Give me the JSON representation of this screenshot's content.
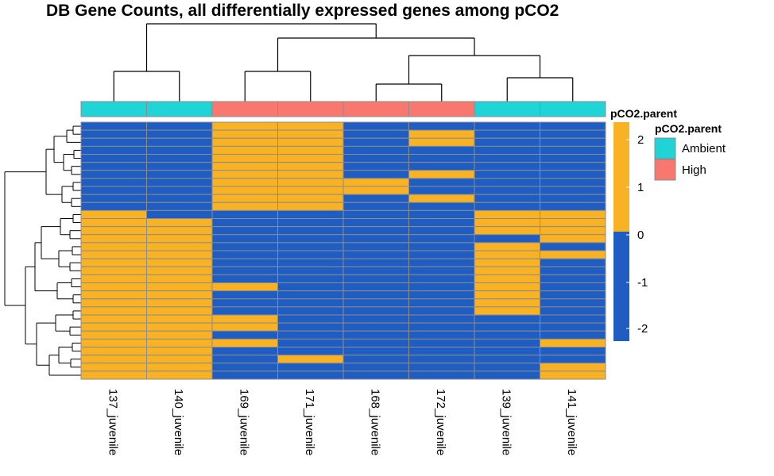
{
  "chart_data": {
    "type": "heatmap",
    "title": "DB Gene Counts, all differentially expressed genes among pCO2",
    "columns": [
      "137_juvenile",
      "140_juvenile",
      "169_juvenile",
      "171_juvenile",
      "168_juvenile",
      "172_juvenile",
      "139_juvenile",
      "141_juvenile"
    ],
    "column_annotation": {
      "name": "pCO2.parent",
      "values": [
        "Ambient",
        "Ambient",
        "High",
        "High",
        "High",
        "High",
        "Ambient",
        "Ambient"
      ]
    },
    "legend": {
      "title": "pCO2.parent",
      "items": [
        {
          "label": "Ambient",
          "color": "#1fd3d7"
        },
        {
          "label": "High",
          "color": "#f8786f"
        }
      ]
    },
    "color_scale": {
      "ticks": [
        "2",
        "1",
        "0",
        "-1",
        "-2"
      ],
      "high_color": "#f9b224",
      "low_color": "#1f5dc3"
    },
    "matrix": [
      [
        0,
        0,
        1,
        1,
        0,
        0,
        0,
        0
      ],
      [
        0,
        0,
        1,
        1,
        0,
        1,
        0,
        0
      ],
      [
        0,
        0,
        1,
        1,
        0,
        1,
        0,
        0
      ],
      [
        0,
        0,
        1,
        1,
        0,
        0,
        0,
        0
      ],
      [
        0,
        0,
        1,
        1,
        0,
        0,
        0,
        0
      ],
      [
        0,
        0,
        1,
        1,
        0,
        0,
        0,
        0
      ],
      [
        0,
        0,
        1,
        1,
        0,
        1,
        0,
        0
      ],
      [
        0,
        0,
        1,
        1,
        1,
        0,
        0,
        0
      ],
      [
        0,
        0,
        1,
        1,
        1,
        0,
        0,
        0
      ],
      [
        0,
        0,
        1,
        1,
        0,
        1,
        0,
        0
      ],
      [
        0,
        0,
        1,
        1,
        0,
        0,
        0,
        0
      ],
      [
        1,
        0,
        0,
        0,
        0,
        0,
        1,
        1
      ],
      [
        1,
        1,
        0,
        0,
        0,
        0,
        1,
        1
      ],
      [
        1,
        1,
        0,
        0,
        0,
        0,
        1,
        1
      ],
      [
        1,
        1,
        0,
        0,
        0,
        0,
        0,
        1
      ],
      [
        1,
        1,
        0,
        0,
        0,
        0,
        1,
        0
      ],
      [
        1,
        1,
        0,
        0,
        0,
        0,
        1,
        1
      ],
      [
        1,
        1,
        0,
        0,
        0,
        0,
        1,
        0
      ],
      [
        1,
        1,
        0,
        0,
        0,
        0,
        1,
        0
      ],
      [
        1,
        1,
        0,
        0,
        0,
        0,
        1,
        0
      ],
      [
        1,
        1,
        1,
        0,
        0,
        0,
        1,
        0
      ],
      [
        1,
        1,
        0,
        0,
        0,
        0,
        1,
        0
      ],
      [
        1,
        1,
        0,
        0,
        0,
        0,
        1,
        0
      ],
      [
        1,
        1,
        0,
        0,
        0,
        0,
        1,
        0
      ],
      [
        1,
        1,
        1,
        0,
        0,
        0,
        0,
        0
      ],
      [
        1,
        1,
        1,
        0,
        0,
        0,
        0,
        0
      ],
      [
        1,
        1,
        0,
        0,
        0,
        0,
        0,
        0
      ],
      [
        1,
        1,
        1,
        0,
        0,
        0,
        0,
        1
      ],
      [
        1,
        1,
        0,
        0,
        0,
        0,
        0,
        0
      ],
      [
        1,
        1,
        0,
        1,
        0,
        0,
        0,
        0
      ],
      [
        1,
        1,
        0,
        0,
        0,
        0,
        0,
        1
      ],
      [
        1,
        1,
        0,
        0,
        0,
        0,
        0,
        1
      ]
    ],
    "value_encoding": {
      "1": "high (orange)",
      "0": "low (blue)"
    },
    "grid": true
  }
}
